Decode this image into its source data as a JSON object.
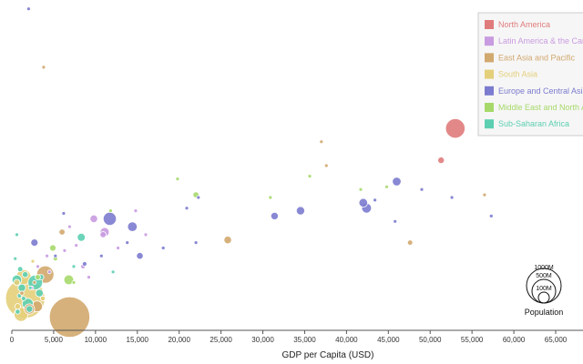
{
  "chart_data": {
    "type": "scatter",
    "title": "",
    "xlabel": "GDP per Capita (USD)",
    "ylabel": "",
    "xlim": [
      0,
      68000
    ],
    "x_ticks": [
      0,
      5000,
      10000,
      15000,
      20000,
      25000,
      30000,
      35000,
      40000,
      45000,
      50000,
      55000,
      60000,
      65000
    ],
    "x_tick_labels": [
      "0",
      "5,000",
      "10,000",
      "15,000",
      "20,000",
      "25,000",
      "30,000",
      "35,000",
      "40,000",
      "45,000",
      "50,000",
      "55,000",
      "60,000",
      "65,000"
    ],
    "grid": false,
    "legend_position": "top-right",
    "size_legend": {
      "title": "Population",
      "entries": [
        {
          "label": "1000M",
          "value": 1000
        },
        {
          "label": "500M",
          "value": 500
        },
        {
          "label": "100M",
          "value": 100
        }
      ]
    },
    "series": [
      {
        "name": "North America",
        "color": "#e07b7b",
        "points": [
          {
            "x": 53000,
            "y": 76,
            "pop": 320
          },
          {
            "x": 51300,
            "y": 64,
            "pop": 36
          }
        ]
      },
      {
        "name": "Latin America & the Caribbean",
        "color": "#c99be0",
        "points": [
          {
            "x": 9800,
            "y": 42,
            "pop": 48
          },
          {
            "x": 11100,
            "y": 37,
            "pop": 70
          },
          {
            "x": 8500,
            "y": 24,
            "pop": 18
          },
          {
            "x": 6300,
            "y": 30,
            "pop": 10
          },
          {
            "x": 4200,
            "y": 28,
            "pop": 8
          },
          {
            "x": 3100,
            "y": 24,
            "pop": 6
          },
          {
            "x": 10900,
            "y": 36,
            "pop": 32
          },
          {
            "x": 14800,
            "y": 45,
            "pop": 4
          },
          {
            "x": 16000,
            "y": 36,
            "pop": 3
          },
          {
            "x": 7700,
            "y": 32,
            "pop": 5
          },
          {
            "x": 12700,
            "y": 31,
            "pop": 3
          },
          {
            "x": 2400,
            "y": 16,
            "pop": 10
          },
          {
            "x": 6900,
            "y": 39,
            "pop": 4
          },
          {
            "x": 9200,
            "y": 20,
            "pop": 3
          },
          {
            "x": 4500,
            "y": 22,
            "pop": 4
          }
        ]
      },
      {
        "name": "East Asia and Pacific",
        "color": "#d1a86e",
        "points": [
          {
            "x": 6900,
            "y": 5,
            "pop": 1370
          },
          {
            "x": 4000,
            "y": 21,
            "pop": 250
          },
          {
            "x": 3000,
            "y": 9,
            "pop": 100
          },
          {
            "x": 47600,
            "y": 33,
            "pop": 24
          },
          {
            "x": 56500,
            "y": 51,
            "pop": 5
          },
          {
            "x": 25800,
            "y": 34,
            "pop": 50
          },
          {
            "x": 37600,
            "y": 62,
            "pop": 4
          },
          {
            "x": 37000,
            "y": 71,
            "pop": 2
          },
          {
            "x": 6000,
            "y": 37,
            "pop": 30
          },
          {
            "x": 3800,
            "y": 99,
            "pop": 1
          },
          {
            "x": 2100,
            "y": 8,
            "pop": 90
          },
          {
            "x": 1200,
            "y": 14,
            "pop": 15
          },
          {
            "x": 2700,
            "y": 18,
            "pop": 7
          }
        ]
      },
      {
        "name": "South Asia",
        "color": "#e4cf7a",
        "points": [
          {
            "x": 1600,
            "y": 12,
            "pop": 1300
          },
          {
            "x": 1400,
            "y": 20,
            "pop": 190
          },
          {
            "x": 1100,
            "y": 6,
            "pop": 160
          },
          {
            "x": 3700,
            "y": 12,
            "pop": 21
          },
          {
            "x": 700,
            "y": 9,
            "pop": 28
          },
          {
            "x": 600,
            "y": 18,
            "pop": 33
          },
          {
            "x": 2500,
            "y": 26,
            "pop": 1
          }
        ]
      },
      {
        "name": "Europe and Central Asia",
        "color": "#7b7bcf",
        "points": [
          {
            "x": 11700,
            "y": 42,
            "pop": 145
          },
          {
            "x": 14400,
            "y": 39,
            "pop": 78
          },
          {
            "x": 15300,
            "y": 28,
            "pop": 38
          },
          {
            "x": 2700,
            "y": 33,
            "pop": 45
          },
          {
            "x": 46000,
            "y": 56,
            "pop": 65
          },
          {
            "x": 42000,
            "y": 48,
            "pop": 64
          },
          {
            "x": 42400,
            "y": 46,
            "pop": 82
          },
          {
            "x": 34500,
            "y": 45,
            "pop": 60
          },
          {
            "x": 31400,
            "y": 43,
            "pop": 46
          },
          {
            "x": 57300,
            "y": 43,
            "pop": 10
          },
          {
            "x": 52600,
            "y": 50,
            "pop": 5
          },
          {
            "x": 49000,
            "y": 53,
            "pop": 8
          },
          {
            "x": 43400,
            "y": 49,
            "pop": 11
          },
          {
            "x": 45800,
            "y": 41,
            "pop": 9
          },
          {
            "x": 22300,
            "y": 50,
            "pop": 10
          },
          {
            "x": 20900,
            "y": 46,
            "pop": 11
          },
          {
            "x": 18100,
            "y": 31,
            "pop": 4
          },
          {
            "x": 13800,
            "y": 33,
            "pop": 3
          },
          {
            "x": 6200,
            "y": 44,
            "pop": 5
          },
          {
            "x": 8700,
            "y": 25,
            "pop": 17
          },
          {
            "x": 5200,
            "y": 28,
            "pop": 10
          },
          {
            "x": 10700,
            "y": 28,
            "pop": 3
          },
          {
            "x": 22000,
            "y": 33,
            "pop": 2
          },
          {
            "x": 2000,
            "y": 121,
            "pop": 1
          }
        ]
      },
      {
        "name": "Middle East and North Africa",
        "color": "#a6d96a",
        "points": [
          {
            "x": 6800,
            "y": 19,
            "pop": 80
          },
          {
            "x": 22000,
            "y": 51,
            "pop": 31
          },
          {
            "x": 35600,
            "y": 58,
            "pop": 9
          },
          {
            "x": 41700,
            "y": 53,
            "pop": 5
          },
          {
            "x": 44800,
            "y": 54,
            "pop": 4
          },
          {
            "x": 4900,
            "y": 31,
            "pop": 34
          },
          {
            "x": 5200,
            "y": 27,
            "pop": 18
          },
          {
            "x": 7400,
            "y": 18,
            "pop": 4
          },
          {
            "x": 30900,
            "y": 50,
            "pop": 2
          },
          {
            "x": 19800,
            "y": 57,
            "pop": 1
          },
          {
            "x": 3100,
            "y": 20,
            "pop": 23
          },
          {
            "x": 11800,
            "y": 45,
            "pop": 5
          }
        ]
      },
      {
        "name": "Sub-Saharan Africa",
        "color": "#5ccfb1",
        "points": [
          {
            "x": 2800,
            "y": 18,
            "pop": 180
          },
          {
            "x": 3300,
            "y": 14,
            "pop": 50
          },
          {
            "x": 8300,
            "y": 35,
            "pop": 55
          },
          {
            "x": 1900,
            "y": 10,
            "pop": 99
          },
          {
            "x": 1200,
            "y": 16,
            "pop": 50
          },
          {
            "x": 600,
            "y": 19,
            "pop": 77
          },
          {
            "x": 1600,
            "y": 21,
            "pop": 28
          },
          {
            "x": 1000,
            "y": 23,
            "pop": 24
          },
          {
            "x": 2100,
            "y": 8,
            "pop": 38
          },
          {
            "x": 700,
            "y": 7,
            "pop": 20
          },
          {
            "x": 1400,
            "y": 12,
            "pop": 18
          },
          {
            "x": 900,
            "y": 13,
            "pop": 16
          },
          {
            "x": 3500,
            "y": 20,
            "pop": 25
          },
          {
            "x": 7400,
            "y": 24,
            "pop": 2
          },
          {
            "x": 400,
            "y": 27,
            "pop": 4
          },
          {
            "x": 600,
            "y": 36,
            "pop": 3
          },
          {
            "x": 12100,
            "y": 22,
            "pop": 1
          },
          {
            "x": 2200,
            "y": 16,
            "pop": 10
          }
        ]
      }
    ]
  }
}
